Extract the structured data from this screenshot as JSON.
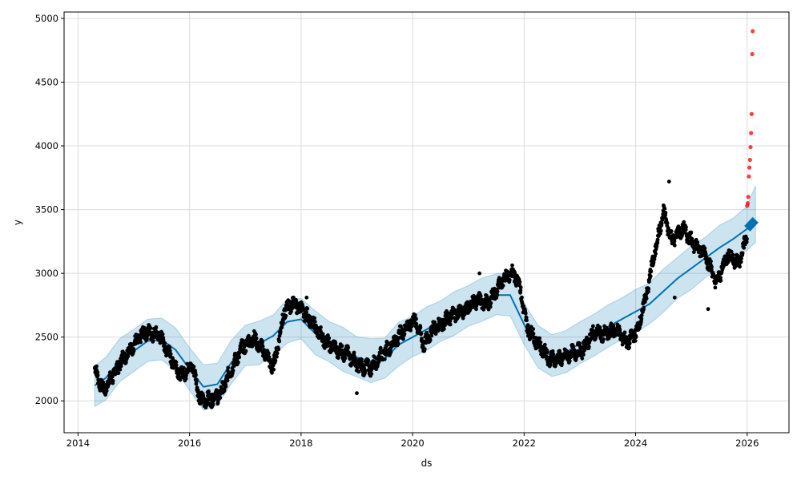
{
  "chart_data": {
    "type": "scatter",
    "title": "",
    "xlabel": "ds",
    "ylabel": "y",
    "xlim": [
      2013.75,
      2026.75
    ],
    "ylim": [
      1750,
      5050
    ],
    "x_ticks": [
      2014,
      2016,
      2018,
      2020,
      2022,
      2024,
      2026
    ],
    "x_tick_labels": [
      "2014",
      "2016",
      "2018",
      "2020",
      "2022",
      "2024",
      "2026"
    ],
    "y_ticks": [
      2000,
      2500,
      3000,
      3500,
      4000,
      4500,
      5000
    ],
    "y_tick_labels": [
      "2000",
      "2500",
      "3000",
      "3500",
      "4000",
      "4500",
      "5000"
    ],
    "grid": true,
    "legend": "none",
    "colors": {
      "observed": "#000000",
      "forecast_line": "#0072B2",
      "uncertainty_band": "#0072B2",
      "outliers": "#ff0000"
    },
    "forecast": {
      "x": [
        2014.3,
        2014.5,
        2014.75,
        2015.0,
        2015.25,
        2015.5,
        2015.75,
        2016.0,
        2016.25,
        2016.5,
        2016.75,
        2017.0,
        2017.25,
        2017.5,
        2017.75,
        2018.0,
        2018.25,
        2018.5,
        2018.75,
        2019.0,
        2019.25,
        2019.5,
        2019.75,
        2020.0,
        2020.25,
        2020.5,
        2020.75,
        2021.0,
        2021.25,
        2021.5,
        2021.75,
        2022.0,
        2022.25,
        2022.5,
        2022.75,
        2023.0,
        2023.25,
        2023.5,
        2023.75,
        2024.0,
        2024.25,
        2024.5,
        2024.75,
        2025.0,
        2025.25,
        2025.5,
        2025.75,
        2026.0,
        2026.15
      ],
      "yhat": [
        2120,
        2180,
        2320,
        2390,
        2470,
        2480,
        2400,
        2250,
        2110,
        2130,
        2300,
        2430,
        2450,
        2510,
        2620,
        2640,
        2530,
        2460,
        2400,
        2340,
        2310,
        2330,
        2440,
        2500,
        2560,
        2620,
        2680,
        2740,
        2790,
        2830,
        2830,
        2600,
        2420,
        2350,
        2380,
        2450,
        2510,
        2580,
        2640,
        2700,
        2760,
        2860,
        2960,
        3040,
        3120,
        3200,
        3270,
        3350,
        3420
      ],
      "lower": [
        1950,
        2010,
        2150,
        2230,
        2310,
        2320,
        2240,
        2080,
        1930,
        1960,
        2140,
        2270,
        2290,
        2350,
        2460,
        2480,
        2370,
        2300,
        2240,
        2180,
        2150,
        2170,
        2280,
        2340,
        2400,
        2460,
        2520,
        2580,
        2630,
        2670,
        2670,
        2440,
        2260,
        2190,
        2220,
        2290,
        2350,
        2420,
        2480,
        2540,
        2600,
        2700,
        2800,
        2880,
        2960,
        3040,
        3110,
        3190,
        3250
      ],
      "upper": [
        2280,
        2340,
        2490,
        2560,
        2640,
        2650,
        2570,
        2420,
        2280,
        2300,
        2470,
        2600,
        2620,
        2680,
        2790,
        2810,
        2700,
        2630,
        2570,
        2510,
        2480,
        2500,
        2610,
        2670,
        2730,
        2790,
        2850,
        2910,
        2960,
        3000,
        3000,
        2770,
        2590,
        2520,
        2550,
        2620,
        2680,
        2750,
        2810,
        2870,
        2930,
        3030,
        3130,
        3210,
        3290,
        3370,
        3440,
        3520,
        3680
      ]
    },
    "observed_path": {
      "x": [
        2014.3,
        2014.45,
        2014.6,
        2014.8,
        2015.0,
        2015.2,
        2015.45,
        2015.65,
        2015.85,
        2016.05,
        2016.2,
        2016.35,
        2016.55,
        2016.75,
        2016.95,
        2017.15,
        2017.35,
        2017.5,
        2017.7,
        2017.85,
        2018.05,
        2018.25,
        2018.45,
        2018.65,
        2018.85,
        2019.05,
        2019.25,
        2019.45,
        2019.65,
        2019.85,
        2020.05,
        2020.2,
        2020.35,
        2020.55,
        2020.75,
        2020.95,
        2021.15,
        2021.35,
        2021.55,
        2021.75,
        2021.9,
        2022.05,
        2022.25,
        2022.45,
        2022.65,
        2022.85,
        2023.05,
        2023.25,
        2023.45,
        2023.65,
        2023.85,
        2024.05,
        2024.2,
        2024.35,
        2024.5,
        2024.65,
        2024.85,
        2025.05,
        2025.25,
        2025.45,
        2025.65,
        2025.85,
        2026.0
      ],
      "y": [
        2250,
        2080,
        2180,
        2330,
        2440,
        2540,
        2520,
        2350,
        2200,
        2280,
        2000,
        2010,
        2050,
        2250,
        2420,
        2490,
        2380,
        2250,
        2700,
        2770,
        2700,
        2580,
        2460,
        2400,
        2360,
        2270,
        2260,
        2360,
        2450,
        2560,
        2640,
        2430,
        2560,
        2620,
        2680,
        2720,
        2790,
        2760,
        2900,
        3010,
        2950,
        2580,
        2450,
        2330,
        2330,
        2370,
        2400,
        2540,
        2520,
        2560,
        2450,
        2570,
        2850,
        3180,
        3480,
        3260,
        3350,
        3230,
        3150,
        2920,
        3150,
        3080,
        3300
      ]
    },
    "outliers": {
      "x": [
        2026.0,
        2026.01,
        2026.02,
        2026.03,
        2026.04,
        2026.05,
        2026.06,
        2026.07,
        2026.08,
        2026.09,
        2026.1
      ],
      "y": [
        3530,
        3550,
        3600,
        3760,
        3830,
        3890,
        3990,
        4100,
        4250,
        4720,
        4900
      ]
    }
  }
}
